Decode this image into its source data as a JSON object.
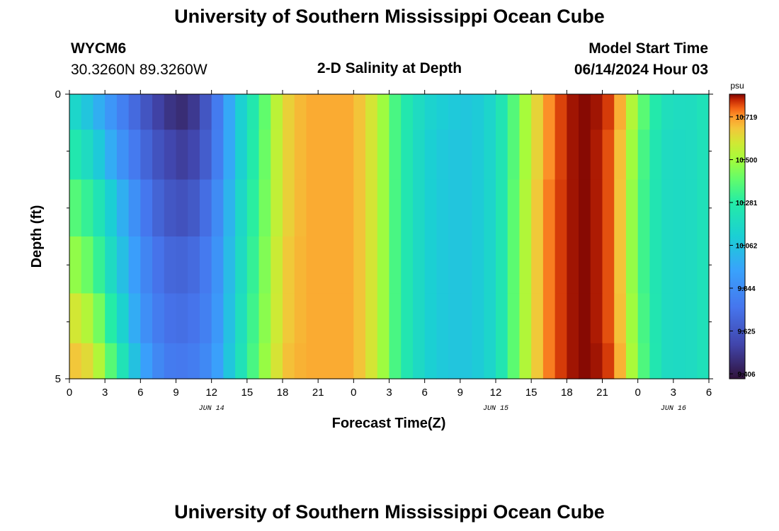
{
  "page": {
    "title": "University of Southern Mississippi Ocean Cube",
    "footer_title": "University of Southern Mississippi Ocean Cube"
  },
  "station": {
    "id": "WYCM6",
    "coords": "30.3260N  89.3260W"
  },
  "model_start": {
    "label": "Model Start Time",
    "value": "06/14/2024 Hour 03"
  },
  "chart_data": {
    "type": "heatmap",
    "title": "2-D Salinity at Depth",
    "xlabel": "Forecast Time(Z)",
    "ylabel": "Depth (ft)",
    "units": "psu",
    "x_ticks": [
      "0",
      "3",
      "6",
      "9",
      "12",
      "15",
      "18",
      "21",
      "0",
      "3",
      "6",
      "9",
      "12",
      "15",
      "18",
      "21",
      "0",
      "3",
      "6"
    ],
    "x_range_hours": [
      0,
      54
    ],
    "date_labels": [
      {
        "text": "JUN 14",
        "hour": 12
      },
      {
        "text": "JUN 15",
        "hour": 36
      },
      {
        "text": "JUN 16",
        "hour": 51
      }
    ],
    "y_ticks": [
      "0",
      "5"
    ],
    "y_range": [
      0,
      5
    ],
    "depth_levels_ft": [
      0.25,
      1.0,
      2.0,
      3.0,
      4.0,
      4.75
    ],
    "colorbar_ticks": [
      "10.719",
      "10.500",
      "10.281",
      "10.062",
      "9.844",
      "9.625",
      "9.406"
    ],
    "colorbar_range": [
      9.32,
      10.8
    ],
    "series": [
      {
        "name": "layer 0.25 ft",
        "times": [
          0,
          2,
          4,
          6,
          8,
          10,
          12,
          14,
          16,
          18,
          20,
          22,
          24,
          26,
          28,
          30,
          32,
          34,
          36,
          38,
          40,
          42,
          44,
          46,
          48,
          50,
          52,
          54
        ],
        "values": [
          10.14,
          9.98,
          9.78,
          9.6,
          9.45,
          9.4,
          9.62,
          10.0,
          10.28,
          10.58,
          10.66,
          10.66,
          10.66,
          10.52,
          10.24,
          10.1,
          10.04,
          10.02,
          10.12,
          10.4,
          10.66,
          10.78,
          10.8,
          10.74,
          10.4,
          10.16,
          10.13,
          10.18
        ]
      },
      {
        "name": "layer 1 ft",
        "times": [
          0,
          2,
          4,
          6,
          8,
          10,
          12,
          14,
          16,
          18,
          20,
          22,
          24,
          26,
          28,
          30,
          32,
          34,
          36,
          38,
          40,
          42,
          44,
          46,
          48,
          50,
          52,
          54
        ],
        "values": [
          10.24,
          10.1,
          9.86,
          9.66,
          9.52,
          9.46,
          9.64,
          10.0,
          10.3,
          10.58,
          10.66,
          10.66,
          10.66,
          10.52,
          10.24,
          10.08,
          10.02,
          10.02,
          10.12,
          10.4,
          10.66,
          10.78,
          10.8,
          10.72,
          10.36,
          10.14,
          10.12,
          10.18
        ]
      },
      {
        "name": "layer 2 ft",
        "times": [
          0,
          2,
          4,
          6,
          8,
          10,
          12,
          14,
          16,
          18,
          20,
          22,
          24,
          26,
          28,
          30,
          32,
          34,
          36,
          38,
          40,
          42,
          44,
          46,
          48,
          50,
          52,
          54
        ],
        "values": [
          10.36,
          10.24,
          10.0,
          9.74,
          9.58,
          9.54,
          9.7,
          10.04,
          10.32,
          10.58,
          10.66,
          10.66,
          10.66,
          10.52,
          10.24,
          10.08,
          10.02,
          10.02,
          10.12,
          10.42,
          10.68,
          10.78,
          10.8,
          10.72,
          10.34,
          10.14,
          10.12,
          10.18
        ]
      },
      {
        "name": "layer 3 ft",
        "times": [
          0,
          2,
          4,
          6,
          8,
          10,
          12,
          14,
          16,
          18,
          20,
          22,
          24,
          26,
          28,
          30,
          32,
          34,
          36,
          38,
          40,
          42,
          44,
          46,
          48,
          50,
          52,
          54
        ],
        "values": [
          10.46,
          10.34,
          10.06,
          9.8,
          9.64,
          9.62,
          9.74,
          10.06,
          10.34,
          10.6,
          10.66,
          10.66,
          10.66,
          10.52,
          10.24,
          10.08,
          10.02,
          10.02,
          10.12,
          10.42,
          10.68,
          10.78,
          10.8,
          10.72,
          10.34,
          10.14,
          10.12,
          10.18
        ]
      },
      {
        "name": "layer 4 ft",
        "times": [
          0,
          2,
          4,
          6,
          8,
          10,
          12,
          14,
          16,
          18,
          20,
          22,
          24,
          26,
          28,
          30,
          32,
          34,
          36,
          38,
          40,
          42,
          44,
          46,
          48,
          50,
          52,
          54
        ],
        "values": [
          10.58,
          10.46,
          10.16,
          9.84,
          9.68,
          9.66,
          9.76,
          10.08,
          10.36,
          10.6,
          10.66,
          10.66,
          10.66,
          10.52,
          10.24,
          10.08,
          10.02,
          10.02,
          10.12,
          10.42,
          10.68,
          10.78,
          10.8,
          10.72,
          10.36,
          10.14,
          10.12,
          10.18
        ]
      },
      {
        "name": "layer 4.75 ft",
        "times": [
          0,
          2,
          4,
          6,
          8,
          10,
          12,
          14,
          16,
          18,
          20,
          22,
          24,
          26,
          28,
          30,
          32,
          34,
          36,
          38,
          40,
          42,
          44,
          46,
          48,
          50,
          52,
          54
        ],
        "values": [
          10.64,
          10.56,
          10.26,
          9.92,
          9.72,
          9.7,
          9.8,
          10.1,
          10.38,
          10.62,
          10.66,
          10.66,
          10.66,
          10.52,
          10.24,
          10.08,
          10.02,
          10.02,
          10.12,
          10.42,
          10.68,
          10.78,
          10.8,
          10.74,
          10.38,
          10.14,
          10.12,
          10.18
        ]
      }
    ]
  }
}
